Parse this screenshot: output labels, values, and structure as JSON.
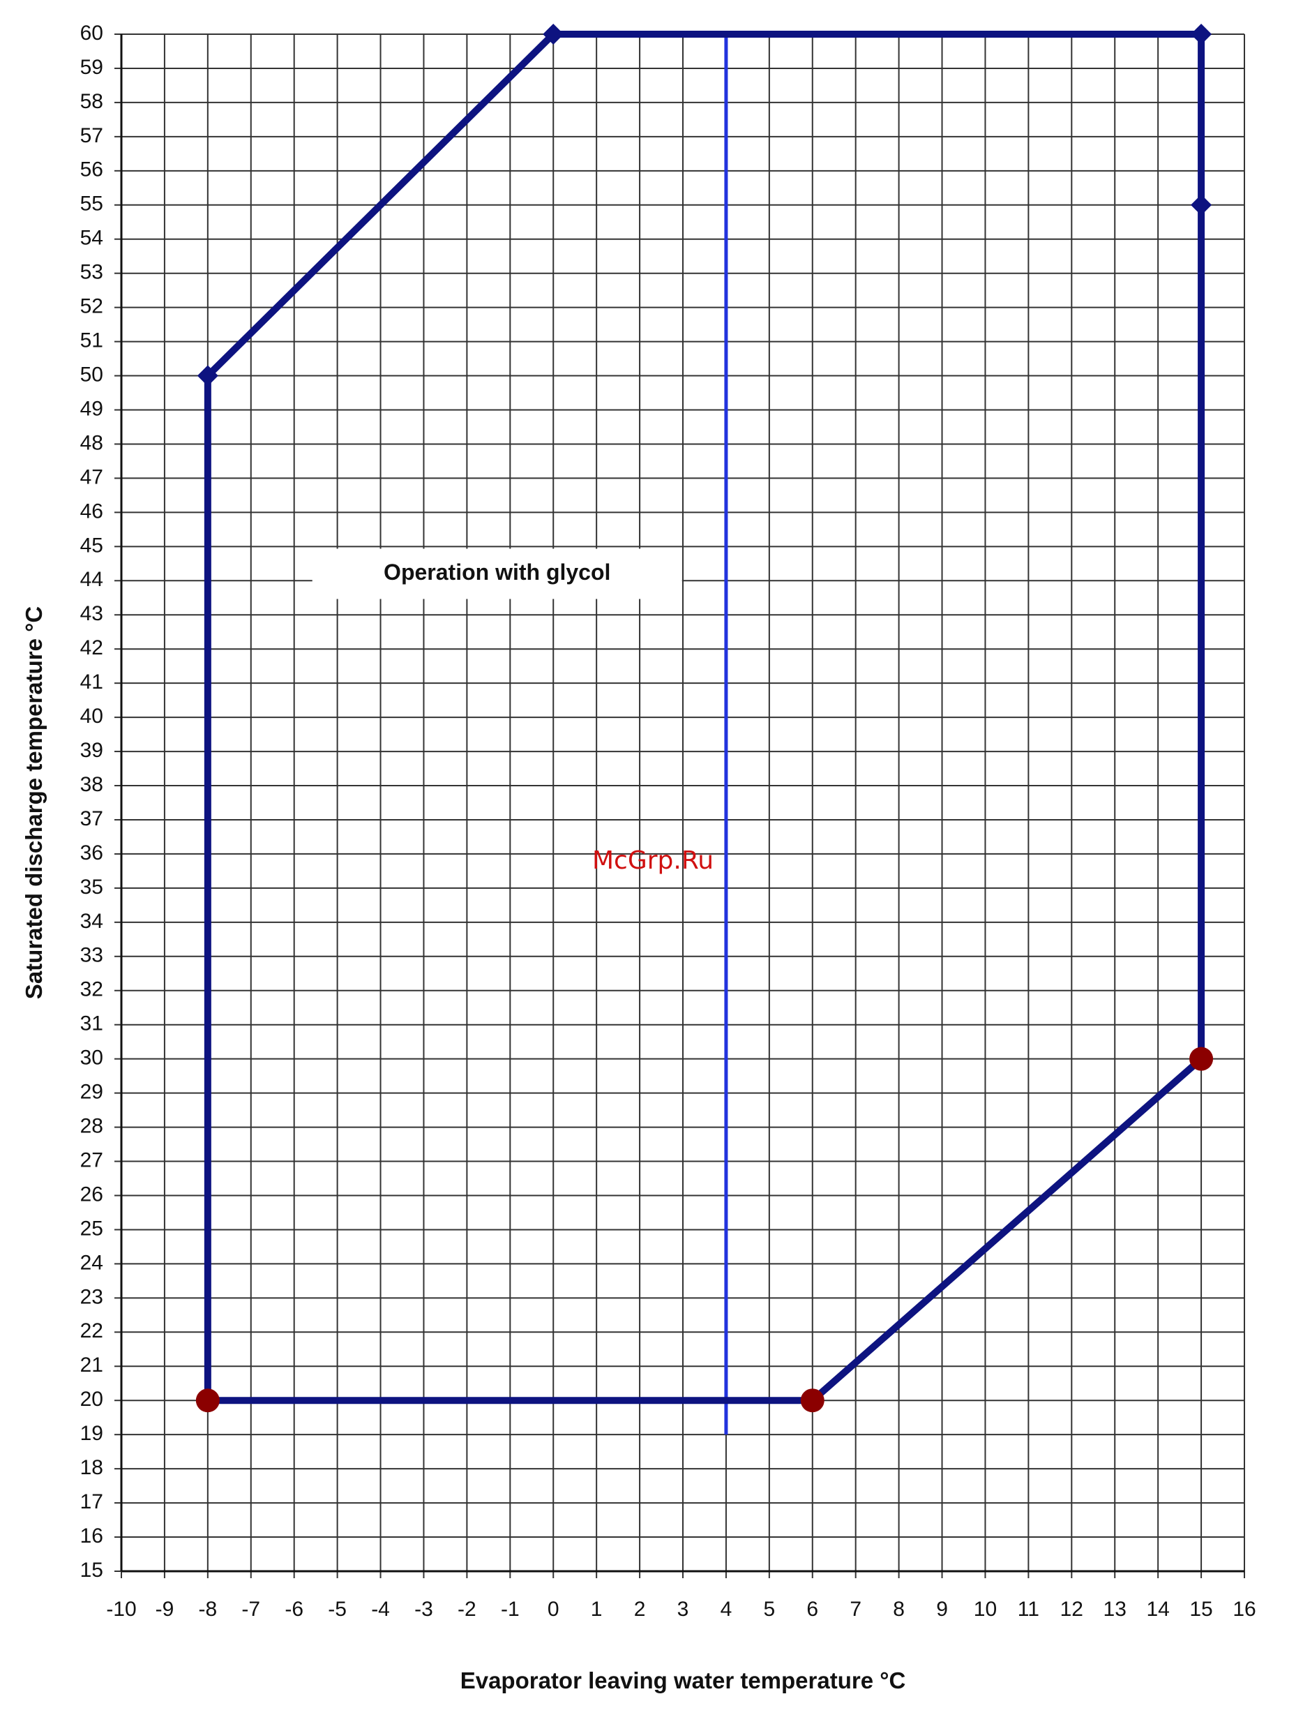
{
  "chart_data": {
    "type": "line",
    "title": "",
    "xlabel": "Evaporator leaving water temperature °C",
    "ylabel": "Saturated discharge temperature °C",
    "xlim": [
      -10,
      16
    ],
    "ylim": [
      15,
      60
    ],
    "x_ticks": [
      -10,
      -9,
      -8,
      -7,
      -6,
      -5,
      -4,
      -3,
      -2,
      -1,
      0,
      1,
      2,
      3,
      4,
      5,
      6,
      7,
      8,
      9,
      10,
      11,
      12,
      13,
      14,
      15,
      16
    ],
    "y_ticks": [
      15,
      16,
      17,
      18,
      19,
      20,
      21,
      22,
      23,
      24,
      25,
      26,
      27,
      28,
      29,
      30,
      31,
      32,
      33,
      34,
      35,
      36,
      37,
      38,
      39,
      40,
      41,
      42,
      43,
      44,
      45,
      46,
      47,
      48,
      49,
      50,
      51,
      52,
      53,
      54,
      55,
      56,
      57,
      58,
      59,
      60
    ],
    "grid": true,
    "series": [
      {
        "name": "",
        "color": "#0d1380",
        "points": [
          [
            -8,
            20
          ],
          [
            -8,
            50
          ],
          [
            0,
            60
          ],
          [
            15,
            60
          ],
          [
            15,
            55
          ],
          [
            15,
            30
          ],
          [
            6,
            20
          ],
          [
            -8,
            20
          ]
        ],
        "markers": [
          {
            "x": -8,
            "y": 50,
            "shape": "diamond",
            "color": "#0d1380"
          },
          {
            "x": 0,
            "y": 60,
            "shape": "diamond",
            "color": "#0d1380"
          },
          {
            "x": 15,
            "y": 60,
            "shape": "diamond",
            "color": "#0d1380"
          },
          {
            "x": 15,
            "y": 55,
            "shape": "diamond",
            "color": "#0d1380"
          },
          {
            "x": 15,
            "y": 30,
            "shape": "circle",
            "color": "#8b0000"
          },
          {
            "x": 6,
            "y": 20,
            "shape": "circle",
            "color": "#8b0000"
          },
          {
            "x": -8,
            "y": 20,
            "shape": "circle",
            "color": "#8b0000"
          }
        ]
      }
    ],
    "reference_line": {
      "x": 4,
      "y_from": 19,
      "y_to": 60,
      "color": "#2233dd"
    },
    "annotation": {
      "text": "Operation with glycol",
      "x": -1.3,
      "y": 44.2
    },
    "watermark": {
      "text": "McGrp.Ru",
      "color": "#d01010"
    }
  }
}
